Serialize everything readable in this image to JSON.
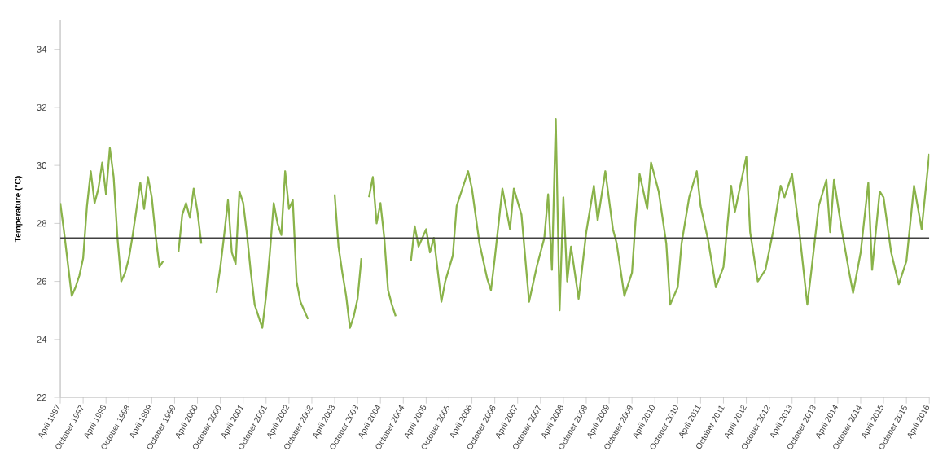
{
  "chart_data": {
    "type": "line",
    "ylabel": "Temperature (°C)",
    "color": "#8ab34a",
    "ylim": [
      22,
      35
    ],
    "yticks": [
      22,
      24,
      26,
      28,
      30,
      32,
      34
    ],
    "xlim": [
      "1997-04",
      "2016-04"
    ],
    "xticks": [
      {
        "value": "1997-04",
        "label": "April 1997"
      },
      {
        "value": "1997-10",
        "label": "October 1997"
      },
      {
        "value": "1998-04",
        "label": "April 1998"
      },
      {
        "value": "1998-10",
        "label": "October 1998"
      },
      {
        "value": "1999-04",
        "label": "April 1999"
      },
      {
        "value": "1999-10",
        "label": "October 1999"
      },
      {
        "value": "2000-04",
        "label": "April 2000"
      },
      {
        "value": "2000-10",
        "label": "October 2000"
      },
      {
        "value": "2001-04",
        "label": "April 2001"
      },
      {
        "value": "2001-10",
        "label": "October 2001"
      },
      {
        "value": "2002-04",
        "label": "April 2002"
      },
      {
        "value": "2002-10",
        "label": "October 2002"
      },
      {
        "value": "2003-04",
        "label": "April 2003"
      },
      {
        "value": "2003-10",
        "label": "October 2003"
      },
      {
        "value": "2004-04",
        "label": "April 2004"
      },
      {
        "value": "2004-10",
        "label": "October 2004"
      },
      {
        "value": "2005-04",
        "label": "April 2005"
      },
      {
        "value": "2005-10",
        "label": "October 2005"
      },
      {
        "value": "2006-04",
        "label": "April 2006"
      },
      {
        "value": "2006-10",
        "label": "October 2006"
      },
      {
        "value": "2007-04",
        "label": "April 2007"
      },
      {
        "value": "2007-10",
        "label": "October 2007"
      },
      {
        "value": "2008-04",
        "label": "April 2008"
      },
      {
        "value": "2008-10",
        "label": "October 2008"
      },
      {
        "value": "2009-04",
        "label": "April 2009"
      },
      {
        "value": "2009-10",
        "label": "October 2009"
      },
      {
        "value": "2010-04",
        "label": "April 2010"
      },
      {
        "value": "2010-10",
        "label": "October 2010"
      },
      {
        "value": "2011-04",
        "label": "April 2011"
      },
      {
        "value": "2011-10",
        "label": "October 2011"
      },
      {
        "value": "2012-04",
        "label": "April 2012"
      },
      {
        "value": "2012-10",
        "label": "October 2012"
      },
      {
        "value": "2013-04",
        "label": "April 2013"
      },
      {
        "value": "2013-10",
        "label": "October 2013"
      },
      {
        "value": "2014-04",
        "label": "April 2014"
      },
      {
        "value": "2014-10",
        "label": "October 2014"
      },
      {
        "value": "2015-04",
        "label": "April 2015"
      },
      {
        "value": "2015-10",
        "label": "October 2015"
      },
      {
        "value": "2016-04",
        "label": "April 2016"
      }
    ],
    "ref_lines": [
      {
        "axis": "y",
        "value": 27.5,
        "color": "#404040"
      }
    ],
    "x": [
      "1997-04",
      "1997-05",
      "1997-06",
      "1997-07",
      "1997-08",
      "1997-09",
      "1997-10",
      "1997-11",
      "1997-12",
      "1998-01",
      "1998-02",
      "1998-03",
      "1998-04",
      "1998-05",
      "1998-06",
      "1998-07",
      "1998-08",
      "1998-09",
      "1998-10",
      "1998-11",
      "1998-12",
      "1999-01",
      "1999-02",
      "1999-03",
      "1999-04",
      "1999-05",
      "1999-06",
      "1999-07",
      "1999-09",
      "1999-11",
      "1999-12",
      "2000-01",
      "2000-02",
      "2000-03",
      "2000-04",
      "2000-05",
      "2000-07",
      "2000-09",
      "2000-10",
      "2000-11",
      "2000-12",
      "2001-01",
      "2001-02",
      "2001-03",
      "2001-04",
      "2001-05",
      "2001-06",
      "2001-07",
      "2001-08",
      "2001-09",
      "2001-10",
      "2001-11",
      "2001-12",
      "2002-01",
      "2002-02",
      "2002-03",
      "2002-04",
      "2002-05",
      "2002-06",
      "2002-07",
      "2002-08",
      "2002-09",
      "2002-12",
      "2003-04",
      "2003-05",
      "2003-06",
      "2003-07",
      "2003-08",
      "2003-09",
      "2003-10",
      "2003-11",
      "2003-12",
      "2004-01",
      "2004-02",
      "2004-03",
      "2004-04",
      "2004-05",
      "2004-06",
      "2004-07",
      "2004-08",
      "2004-10",
      "2004-12",
      "2005-01",
      "2005-02",
      "2005-04",
      "2005-05",
      "2005-06",
      "2005-08",
      "2005-09",
      "2005-11",
      "2005-12",
      "2006-03",
      "2006-04",
      "2006-06",
      "2006-08",
      "2006-09",
      "2006-10",
      "2006-12",
      "2007-02",
      "2007-03",
      "2007-05",
      "2007-07",
      "2007-09",
      "2007-11",
      "2007-12",
      "2008-01",
      "2008-02",
      "2008-03",
      "2008-04",
      "2008-05",
      "2008-06",
      "2008-08",
      "2008-10",
      "2008-12",
      "2009-01",
      "2009-03",
      "2009-05",
      "2009-06",
      "2009-08",
      "2009-10",
      "2009-11",
      "2009-12",
      "2010-02",
      "2010-03",
      "2010-05",
      "2010-07",
      "2010-08",
      "2010-10",
      "2010-11",
      "2011-01",
      "2011-03",
      "2011-04",
      "2011-06",
      "2011-08",
      "2011-10",
      "2011-12",
      "2012-01",
      "2012-04",
      "2012-05",
      "2012-07",
      "2012-09",
      "2012-11",
      "2013-01",
      "2013-02",
      "2013-04",
      "2013-06",
      "2013-08",
      "2013-09",
      "2013-11",
      "2014-01",
      "2014-02",
      "2014-03",
      "2014-05",
      "2014-07",
      "2014-08",
      "2014-10",
      "2014-12",
      "2015-01",
      "2015-03",
      "2015-04",
      "2015-06",
      "2015-08",
      "2015-10",
      "2015-12",
      "2016-02",
      "2016-04"
    ],
    "values": [
      28.7,
      27.7,
      26.6,
      25.5,
      25.8,
      26.2,
      26.8,
      28.6,
      29.8,
      28.7,
      29.2,
      30.1,
      29.0,
      30.6,
      29.6,
      27.5,
      26.0,
      26.3,
      26.8,
      27.6,
      28.5,
      29.4,
      28.5,
      29.6,
      28.9,
      27.6,
      26.5,
      26.7,
      null,
      27.0,
      28.3,
      28.7,
      28.2,
      29.2,
      28.4,
      27.3,
      null,
      25.6,
      26.5,
      27.6,
      28.8,
      27.0,
      26.6,
      29.1,
      28.7,
      27.6,
      26.3,
      25.2,
      24.8,
      24.4,
      25.5,
      27.0,
      28.7,
      28.0,
      27.6,
      29.8,
      28.5,
      28.8,
      26.0,
      25.3,
      25.0,
      24.7,
      null,
      29.0,
      27.2,
      26.3,
      25.5,
      24.4,
      24.8,
      25.4,
      26.8,
      null,
      28.9,
      29.6,
      28.0,
      28.7,
      27.5,
      25.7,
      25.2,
      24.8,
      null,
      26.7,
      27.9,
      27.2,
      27.8,
      27.0,
      27.5,
      25.3,
      26.0,
      26.9,
      28.6,
      29.8,
      29.2,
      27.3,
      26.1,
      25.7,
      26.8,
      29.2,
      27.8,
      29.2,
      28.3,
      25.3,
      26.5,
      27.5,
      29.0,
      26.4,
      31.6,
      25.0,
      28.9,
      26.0,
      27.2,
      25.4,
      27.7,
      29.3,
      28.1,
      29.8,
      27.8,
      27.3,
      25.5,
      26.3,
      28.2,
      29.7,
      28.5,
      30.1,
      29.1,
      27.3,
      25.2,
      25.8,
      27.3,
      28.9,
      29.8,
      28.6,
      27.4,
      25.8,
      26.5,
      29.3,
      28.4,
      30.3,
      27.7,
      26.0,
      26.4,
      27.7,
      29.3,
      28.9,
      29.7,
      27.6,
      25.2,
      26.3,
      28.6,
      29.5,
      27.7,
      29.5,
      27.8,
      26.3,
      25.6,
      27.0,
      29.4,
      26.4,
      29.1,
      28.9,
      27.0,
      25.9,
      26.7,
      29.3,
      27.8,
      30.4
    ]
  }
}
